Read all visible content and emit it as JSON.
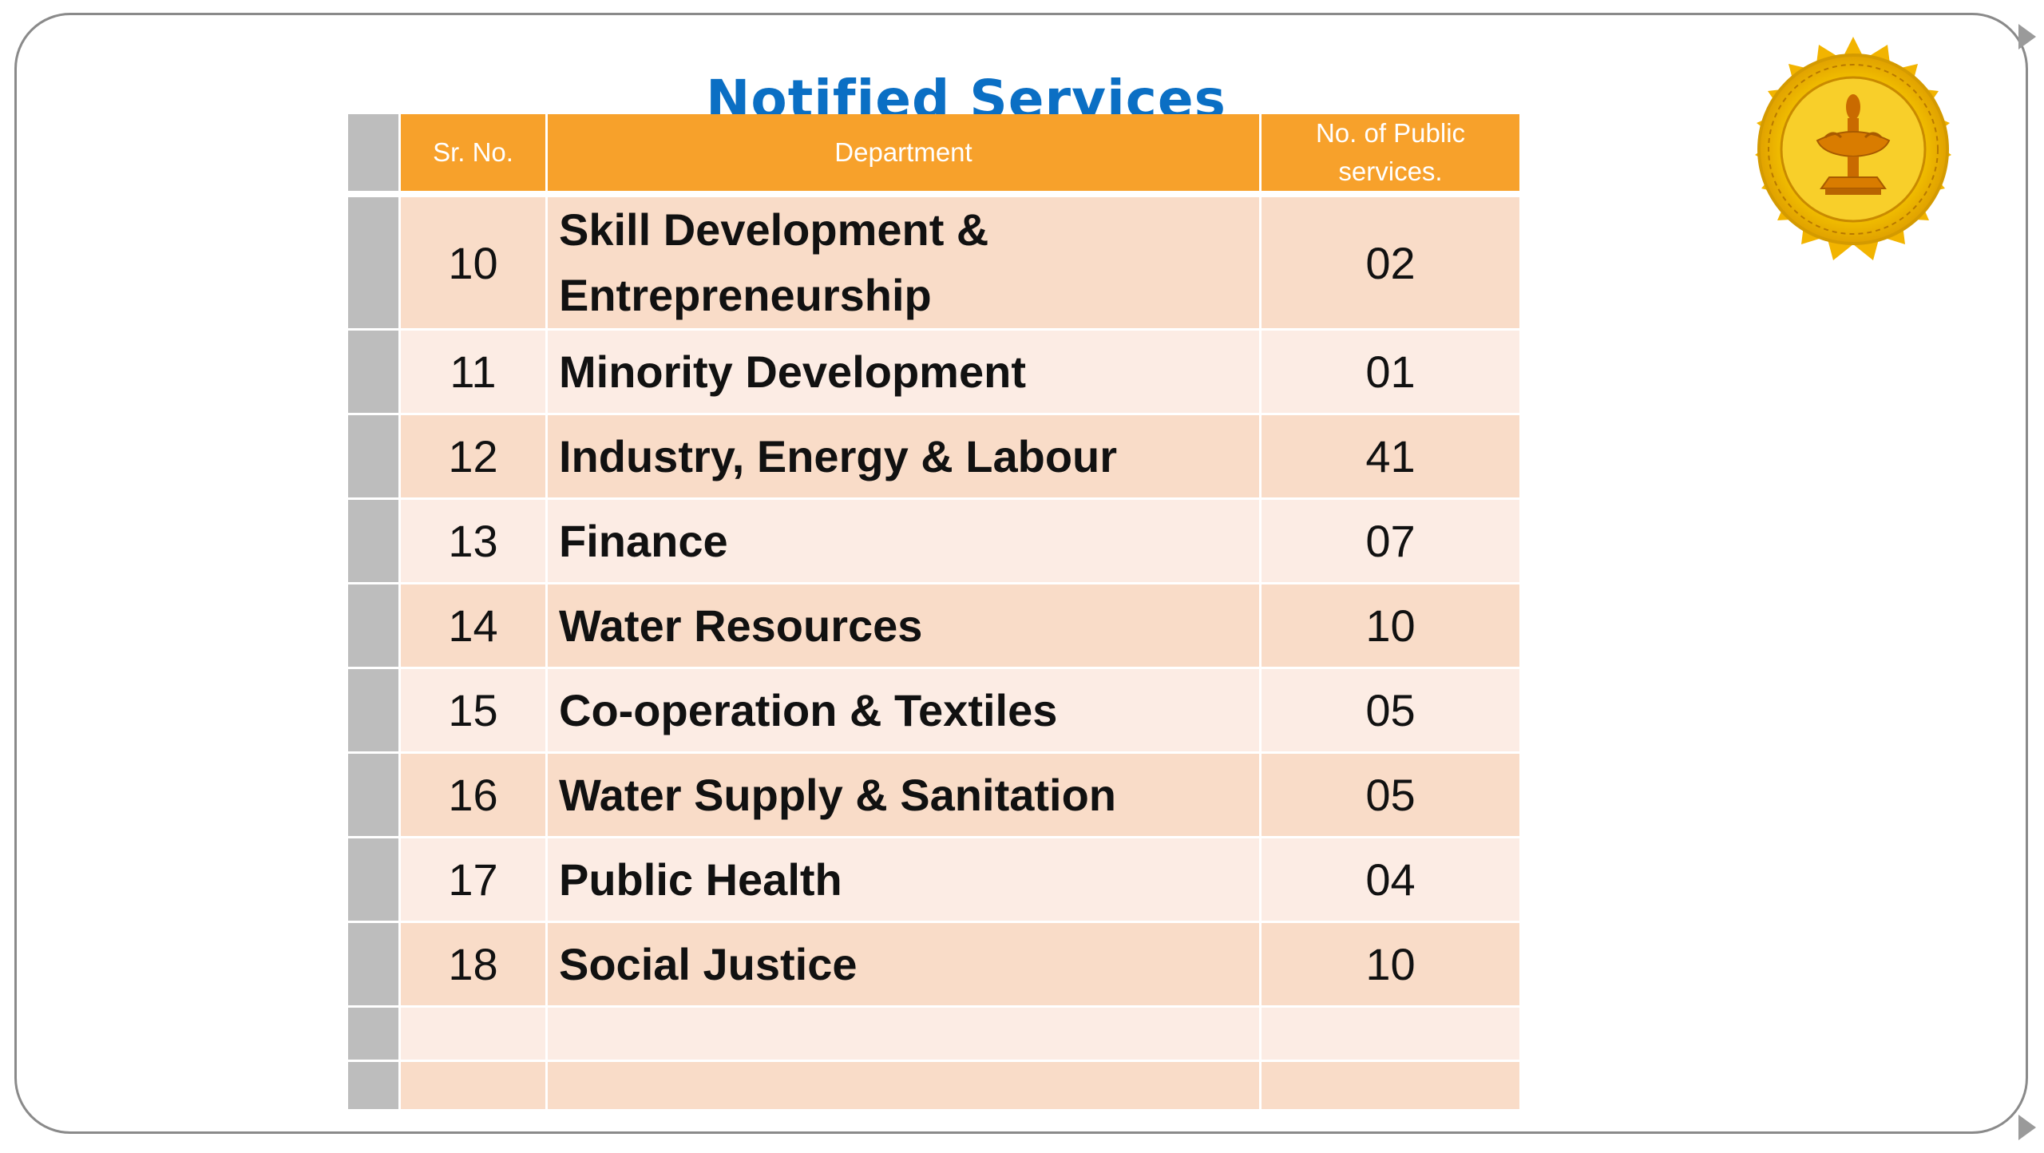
{
  "title": "Notified Services",
  "table": {
    "headers": {
      "sr_no": "Sr. No.",
      "department": "Department",
      "num_services": "No. of  Public services."
    },
    "rows": [
      {
        "sr": "10",
        "department": "Skill Development & Entrepreneurship",
        "count": "02"
      },
      {
        "sr": "11",
        "department": "Minority Development",
        "count": "01"
      },
      {
        "sr": "12",
        "department": "Industry, Energy & Labour",
        "count": "41"
      },
      {
        "sr": "13",
        "department": "Finance",
        "count": "07"
      },
      {
        "sr": "14",
        "department": "Water Resources",
        "count": "10"
      },
      {
        "sr": "15",
        "department": "Co-operation & Textiles",
        "count": "05"
      },
      {
        "sr": "16",
        "department": "Water Supply & Sanitation",
        "count": "05"
      },
      {
        "sr": "17",
        "department": "Public Health",
        "count": "04"
      },
      {
        "sr": "18",
        "department": "Social Justice",
        "count": "10"
      }
    ]
  },
  "seal": {
    "icon": "government-seal-icon",
    "colors": {
      "outer": "#f5c400",
      "inner": "#e8a000",
      "emblem": "#c96a00"
    }
  },
  "colors": {
    "title": "#0b6fc4",
    "header": "#f7a12b",
    "row_dark": "#f9dcc8",
    "row_light": "#fcece4",
    "side_column": "#bdbdbd"
  }
}
